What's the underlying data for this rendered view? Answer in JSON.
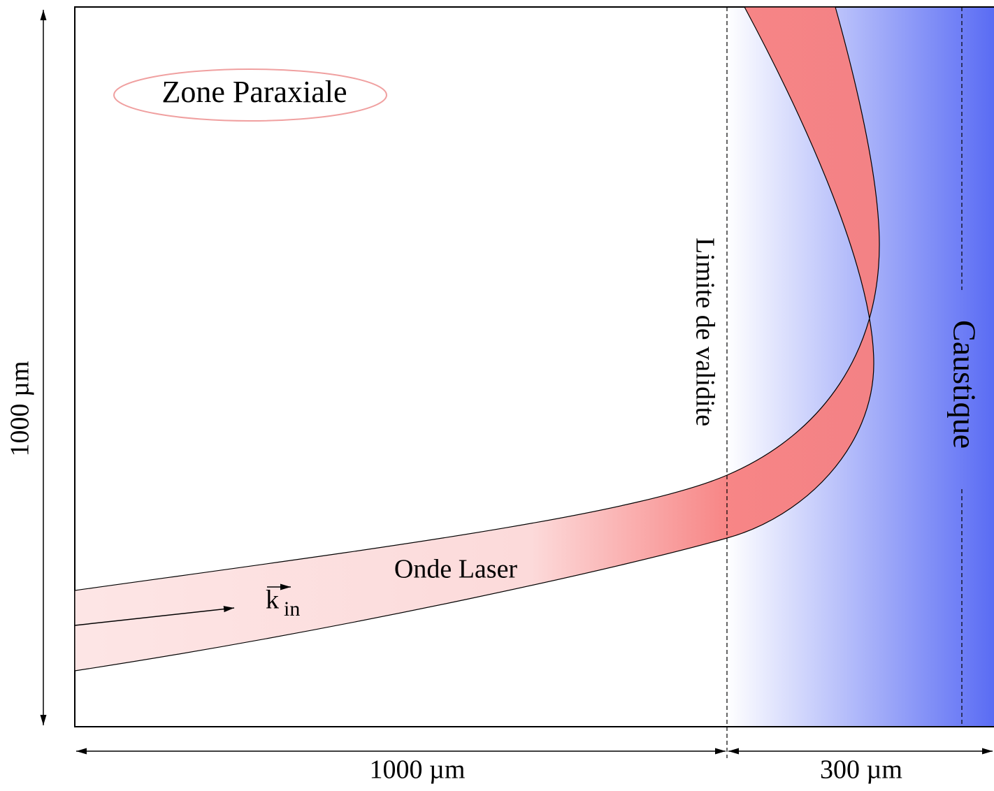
{
  "labels": {
    "zone": "Zone Paraxiale",
    "limit": "Limite de validite",
    "caustic": "Caustique",
    "beam": "Onde Laser",
    "wave_vector": "k",
    "wave_vector_sub": "in"
  },
  "dimensions": {
    "height": "1000 µm",
    "width_paraxial": "1000 µm",
    "width_plasma": "300 µm"
  }
}
